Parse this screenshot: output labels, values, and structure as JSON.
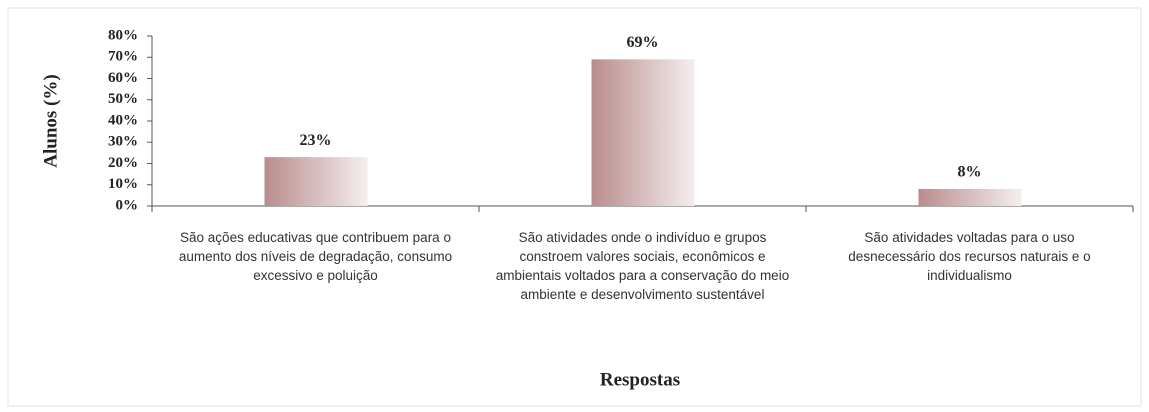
{
  "chart_data": {
    "type": "bar",
    "categories": [
      "São ações educativas que contribuem para o aumento dos níveis de degradação, consumo excessivo e poluição",
      "São atividades onde o indivíduo e grupos constroem valores sociais, econômicos e ambientais voltados para a conservação do meio ambiente e desenvolvimento sustentável",
      "São atividades voltadas para o uso desnecessário dos recursos naturais e o individualismo"
    ],
    "values": [
      23,
      69,
      8
    ],
    "value_labels": [
      "23%",
      "69%",
      "8%"
    ],
    "color": "#b98c8c",
    "ylabel": "Alunos (%)",
    "xlabel": "Respostas",
    "ylim": [
      0,
      80
    ],
    "yticks": [
      {
        "value": 0,
        "label": "0%"
      },
      {
        "value": 10,
        "label": "10%"
      },
      {
        "value": 20,
        "label": "20%"
      },
      {
        "value": 30,
        "label": "30%"
      },
      {
        "value": 40,
        "label": "40%"
      },
      {
        "value": 50,
        "label": "50%"
      },
      {
        "value": 60,
        "label": "60%"
      },
      {
        "value": 70,
        "label": "70%"
      },
      {
        "value": 80,
        "label": "80%"
      }
    ],
    "grid": false
  }
}
